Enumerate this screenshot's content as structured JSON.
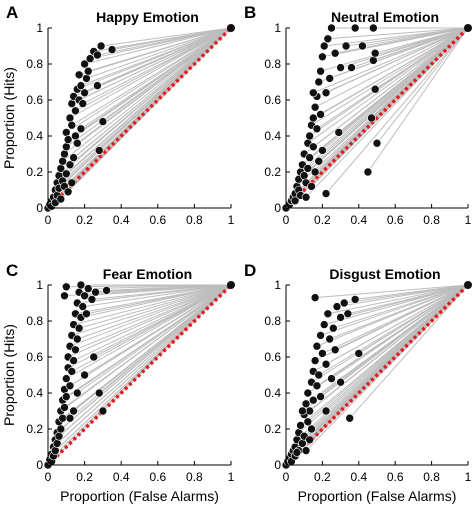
{
  "colors": {
    "roc_lines": "#bdbdbd",
    "points": "#111111",
    "chance": "#e41a1c",
    "axis": "#000000"
  },
  "xlabel": "Proportion (False Alarms)",
  "ylabel": "Proportion (Hits)",
  "chart_data": [
    {
      "type": "scatter",
      "panel_letter": "A",
      "title": "Happy Emotion",
      "xlim": [
        0,
        1
      ],
      "ylim": [
        0,
        1
      ],
      "xticks": [
        "0",
        "0.2",
        "0.4",
        "0.6",
        "0.8",
        "1"
      ],
      "yticks": [
        "0",
        "0.2",
        "0.4",
        "0.6",
        "0.8",
        "1"
      ],
      "chance_line": [
        [
          0,
          0
        ],
        [
          1,
          1
        ]
      ],
      "lines_to_corner": true,
      "corner": [
        1,
        1
      ],
      "points": [
        [
          0.0,
          0.0
        ],
        [
          0.01,
          0.02
        ],
        [
          0.02,
          0.04
        ],
        [
          0.02,
          0.01
        ],
        [
          0.03,
          0.06
        ],
        [
          0.04,
          0.1
        ],
        [
          0.04,
          0.03
        ],
        [
          0.05,
          0.14
        ],
        [
          0.05,
          0.07
        ],
        [
          0.06,
          0.18
        ],
        [
          0.06,
          0.11
        ],
        [
          0.07,
          0.22
        ],
        [
          0.07,
          0.05
        ],
        [
          0.08,
          0.26
        ],
        [
          0.08,
          0.15
        ],
        [
          0.09,
          0.3
        ],
        [
          0.09,
          0.12
        ],
        [
          0.1,
          0.34
        ],
        [
          0.1,
          0.19
        ],
        [
          0.1,
          0.42
        ],
        [
          0.11,
          0.38
        ],
        [
          0.12,
          0.5
        ],
        [
          0.12,
          0.24
        ],
        [
          0.13,
          0.46
        ],
        [
          0.13,
          0.58
        ],
        [
          0.14,
          0.62
        ],
        [
          0.14,
          0.28
        ],
        [
          0.15,
          0.54
        ],
        [
          0.15,
          0.4
        ],
        [
          0.16,
          0.66
        ],
        [
          0.16,
          0.36
        ],
        [
          0.17,
          0.6
        ],
        [
          0.17,
          0.74
        ],
        [
          0.18,
          0.68
        ],
        [
          0.18,
          0.44
        ],
        [
          0.19,
          0.58
        ],
        [
          0.2,
          0.64
        ],
        [
          0.2,
          0.8
        ],
        [
          0.21,
          0.72
        ],
        [
          0.22,
          0.76
        ],
        [
          0.23,
          0.83
        ],
        [
          0.25,
          0.87
        ],
        [
          0.27,
          0.85
        ],
        [
          0.29,
          0.9
        ],
        [
          0.27,
          0.68
        ],
        [
          0.3,
          0.48
        ],
        [
          0.28,
          0.32
        ],
        [
          0.35,
          0.88
        ],
        [
          0.11,
          0.09
        ],
        [
          0.13,
          0.14
        ]
      ]
    },
    {
      "type": "scatter",
      "panel_letter": "B",
      "title": "Neutral Emotion",
      "xlim": [
        0,
        1
      ],
      "ylim": [
        0,
        1
      ],
      "xticks": [
        "0",
        "0.2",
        "0.4",
        "0.6",
        "0.8",
        "1"
      ],
      "yticks": [
        "0",
        "0.2",
        "0.4",
        "0.6",
        "0.8",
        "1"
      ],
      "chance_line": [
        [
          0,
          0
        ],
        [
          1,
          1
        ]
      ],
      "lines_to_corner": true,
      "corner": [
        1,
        1
      ],
      "points": [
        [
          0.0,
          0.0
        ],
        [
          0.02,
          0.02
        ],
        [
          0.03,
          0.04
        ],
        [
          0.04,
          0.06
        ],
        [
          0.05,
          0.08
        ],
        [
          0.05,
          0.04
        ],
        [
          0.06,
          0.12
        ],
        [
          0.07,
          0.1
        ],
        [
          0.07,
          0.16
        ],
        [
          0.08,
          0.2
        ],
        [
          0.08,
          0.07
        ],
        [
          0.09,
          0.24
        ],
        [
          0.1,
          0.18
        ],
        [
          0.1,
          0.3
        ],
        [
          0.11,
          0.14
        ],
        [
          0.12,
          0.22
        ],
        [
          0.12,
          0.36
        ],
        [
          0.13,
          0.4
        ],
        [
          0.13,
          0.28
        ],
        [
          0.14,
          0.46
        ],
        [
          0.14,
          0.12
        ],
        [
          0.15,
          0.5
        ],
        [
          0.15,
          0.34
        ],
        [
          0.16,
          0.56
        ],
        [
          0.16,
          0.2
        ],
        [
          0.17,
          0.62
        ],
        [
          0.17,
          0.44
        ],
        [
          0.18,
          0.7
        ],
        [
          0.18,
          0.26
        ],
        [
          0.19,
          0.76
        ],
        [
          0.19,
          0.52
        ],
        [
          0.2,
          0.84
        ],
        [
          0.2,
          0.32
        ],
        [
          0.21,
          0.9
        ],
        [
          0.22,
          0.64
        ],
        [
          0.22,
          0.08
        ],
        [
          0.23,
          0.94
        ],
        [
          0.24,
          0.72
        ],
        [
          0.25,
          1.0
        ],
        [
          0.27,
          0.86
        ],
        [
          0.3,
          0.78
        ],
        [
          0.29,
          0.42
        ],
        [
          0.33,
          0.9
        ],
        [
          0.36,
          0.78
        ],
        [
          0.38,
          1.0
        ],
        [
          0.42,
          0.9
        ],
        [
          0.45,
          0.2
        ],
        [
          0.47,
          0.5
        ],
        [
          0.49,
          0.66
        ],
        [
          0.5,
          0.36
        ],
        [
          0.48,
          0.82
        ],
        [
          0.48,
          1.0
        ],
        [
          0.49,
          0.86
        ],
        [
          0.15,
          0.64
        ],
        [
          0.11,
          0.06
        ]
      ]
    },
    {
      "type": "scatter",
      "panel_letter": "C",
      "title": "Fear Emotion",
      "xlim": [
        0,
        1
      ],
      "ylim": [
        0,
        1
      ],
      "xticks": [
        "0",
        "0.2",
        "0.4",
        "0.6",
        "0.8",
        "1"
      ],
      "yticks": [
        "0",
        "0.2",
        "0.4",
        "0.6",
        "0.8",
        "1"
      ],
      "chance_line": [
        [
          0,
          0
        ],
        [
          1,
          1
        ]
      ],
      "lines_to_corner": true,
      "corner": [
        1,
        1
      ],
      "points": [
        [
          0.0,
          0.0
        ],
        [
          0.01,
          0.03
        ],
        [
          0.02,
          0.06
        ],
        [
          0.02,
          0.02
        ],
        [
          0.03,
          0.1
        ],
        [
          0.03,
          0.05
        ],
        [
          0.04,
          0.14
        ],
        [
          0.04,
          0.08
        ],
        [
          0.05,
          0.18
        ],
        [
          0.05,
          0.12
        ],
        [
          0.06,
          0.24
        ],
        [
          0.06,
          0.16
        ],
        [
          0.07,
          0.3
        ],
        [
          0.07,
          0.2
        ],
        [
          0.08,
          0.36
        ],
        [
          0.08,
          0.26
        ],
        [
          0.09,
          0.42
        ],
        [
          0.09,
          0.32
        ],
        [
          0.1,
          0.48
        ],
        [
          0.1,
          0.38
        ],
        [
          0.11,
          0.54
        ],
        [
          0.11,
          0.6
        ],
        [
          0.12,
          0.66
        ],
        [
          0.12,
          0.44
        ],
        [
          0.13,
          0.72
        ],
        [
          0.13,
          0.52
        ],
        [
          0.14,
          0.78
        ],
        [
          0.14,
          0.58
        ],
        [
          0.15,
          0.84
        ],
        [
          0.15,
          0.64
        ],
        [
          0.16,
          0.9
        ],
        [
          0.16,
          0.7
        ],
        [
          0.17,
          0.96
        ],
        [
          0.17,
          0.76
        ],
        [
          0.18,
          1.0
        ],
        [
          0.18,
          0.82
        ],
        [
          0.19,
          0.88
        ],
        [
          0.2,
          0.94
        ],
        [
          0.21,
          0.84
        ],
        [
          0.22,
          0.98
        ],
        [
          0.24,
          0.92
        ],
        [
          0.26,
          0.96
        ],
        [
          0.25,
          0.6
        ],
        [
          0.28,
          0.4
        ],
        [
          0.3,
          0.3
        ],
        [
          0.32,
          0.97
        ],
        [
          0.1,
          0.99
        ],
        [
          0.09,
          0.94
        ],
        [
          0.12,
          0.26
        ],
        [
          0.14,
          0.3
        ],
        [
          0.16,
          0.4
        ],
        [
          0.2,
          0.5
        ]
      ]
    },
    {
      "type": "scatter",
      "panel_letter": "D",
      "title": "Disgust Emotion",
      "xlim": [
        0,
        1
      ],
      "ylim": [
        0,
        1
      ],
      "xticks": [
        "0",
        "0.2",
        "0.4",
        "0.6",
        "0.8",
        "1"
      ],
      "yticks": [
        "0",
        "0.2",
        "0.4",
        "0.6",
        "0.8",
        "1"
      ],
      "chance_line": [
        [
          0,
          0
        ],
        [
          1,
          1
        ]
      ],
      "lines_to_corner": true,
      "corner": [
        1,
        1
      ],
      "points": [
        [
          0.0,
          0.0
        ],
        [
          0.01,
          0.02
        ],
        [
          0.02,
          0.04
        ],
        [
          0.03,
          0.06
        ],
        [
          0.03,
          0.02
        ],
        [
          0.04,
          0.08
        ],
        [
          0.05,
          0.1
        ],
        [
          0.05,
          0.05
        ],
        [
          0.06,
          0.14
        ],
        [
          0.07,
          0.18
        ],
        [
          0.07,
          0.08
        ],
        [
          0.08,
          0.22
        ],
        [
          0.09,
          0.12
        ],
        [
          0.1,
          0.28
        ],
        [
          0.1,
          0.16
        ],
        [
          0.11,
          0.34
        ],
        [
          0.12,
          0.24
        ],
        [
          0.12,
          0.4
        ],
        [
          0.13,
          0.3
        ],
        [
          0.14,
          0.46
        ],
        [
          0.14,
          0.2
        ],
        [
          0.15,
          0.52
        ],
        [
          0.15,
          0.36
        ],
        [
          0.16,
          0.58
        ],
        [
          0.17,
          0.44
        ],
        [
          0.17,
          0.66
        ],
        [
          0.18,
          0.5
        ],
        [
          0.19,
          0.72
        ],
        [
          0.19,
          0.38
        ],
        [
          0.2,
          0.62
        ],
        [
          0.21,
          0.78
        ],
        [
          0.22,
          0.56
        ],
        [
          0.23,
          0.84
        ],
        [
          0.24,
          0.7
        ],
        [
          0.25,
          0.48
        ],
        [
          0.26,
          0.76
        ],
        [
          0.28,
          0.88
        ],
        [
          0.3,
          0.82
        ],
        [
          0.3,
          0.46
        ],
        [
          0.32,
          0.9
        ],
        [
          0.34,
          0.84
        ],
        [
          0.35,
          0.26
        ],
        [
          0.4,
          0.62
        ],
        [
          0.38,
          0.92
        ],
        [
          0.16,
          0.93
        ],
        [
          0.27,
          0.64
        ],
        [
          0.22,
          0.3
        ],
        [
          0.13,
          0.14
        ],
        [
          0.09,
          0.3
        ],
        [
          0.11,
          0.08
        ],
        [
          0.06,
          0.07
        ]
      ]
    }
  ]
}
